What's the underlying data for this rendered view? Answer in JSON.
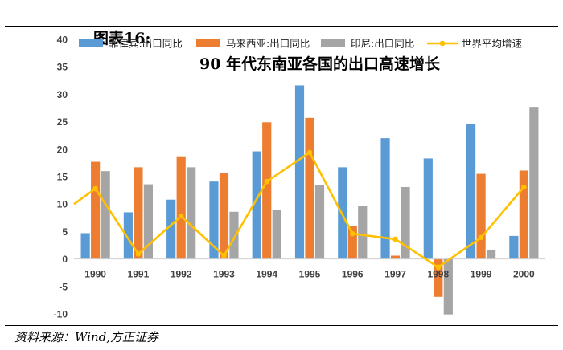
{
  "figure": {
    "label": "图表16:",
    "title": "90 年代东南亚各国的出口高速增长",
    "source": "资料来源：Wind,方正证券"
  },
  "chart_data": {
    "type": "bar",
    "categories": [
      "1990",
      "1991",
      "1992",
      "1993",
      "1994",
      "1995",
      "1996",
      "1997",
      "1998",
      "1999",
      "2000"
    ],
    "series": [
      {
        "name": "菲律宾:出口同比",
        "kind": "bar",
        "color": "#5B9BD5",
        "values": [
          4.7,
          8.5,
          10.8,
          14.1,
          19.6,
          31.6,
          16.7,
          22.0,
          18.3,
          24.5,
          4.2
        ]
      },
      {
        "name": "马来西亚:出口同比",
        "kind": "bar",
        "color": "#ED7D31",
        "values": [
          17.7,
          16.7,
          18.7,
          15.6,
          24.9,
          25.7,
          6.0,
          0.6,
          -6.9,
          15.5,
          16.1
        ]
      },
      {
        "name": "印尼:出口同比",
        "kind": "bar",
        "color": "#A5A5A5",
        "values": [
          16.0,
          13.6,
          16.7,
          8.6,
          8.9,
          13.4,
          9.7,
          13.1,
          -10.1,
          1.7,
          27.7
        ]
      },
      {
        "name": "世界平均增速",
        "kind": "line",
        "color": "#FFC000",
        "values": [
          12.8,
          0.9,
          7.8,
          0.6,
          14.1,
          19.4,
          4.6,
          3.6,
          -1.5,
          3.9,
          13.1
        ]
      }
    ],
    "line_start_value": 10.0,
    "ylim": [
      -10,
      40
    ],
    "yticks": [
      -10,
      -5,
      0,
      5,
      10,
      15,
      20,
      25,
      30,
      35,
      40
    ],
    "grid": false,
    "legend": "top"
  }
}
